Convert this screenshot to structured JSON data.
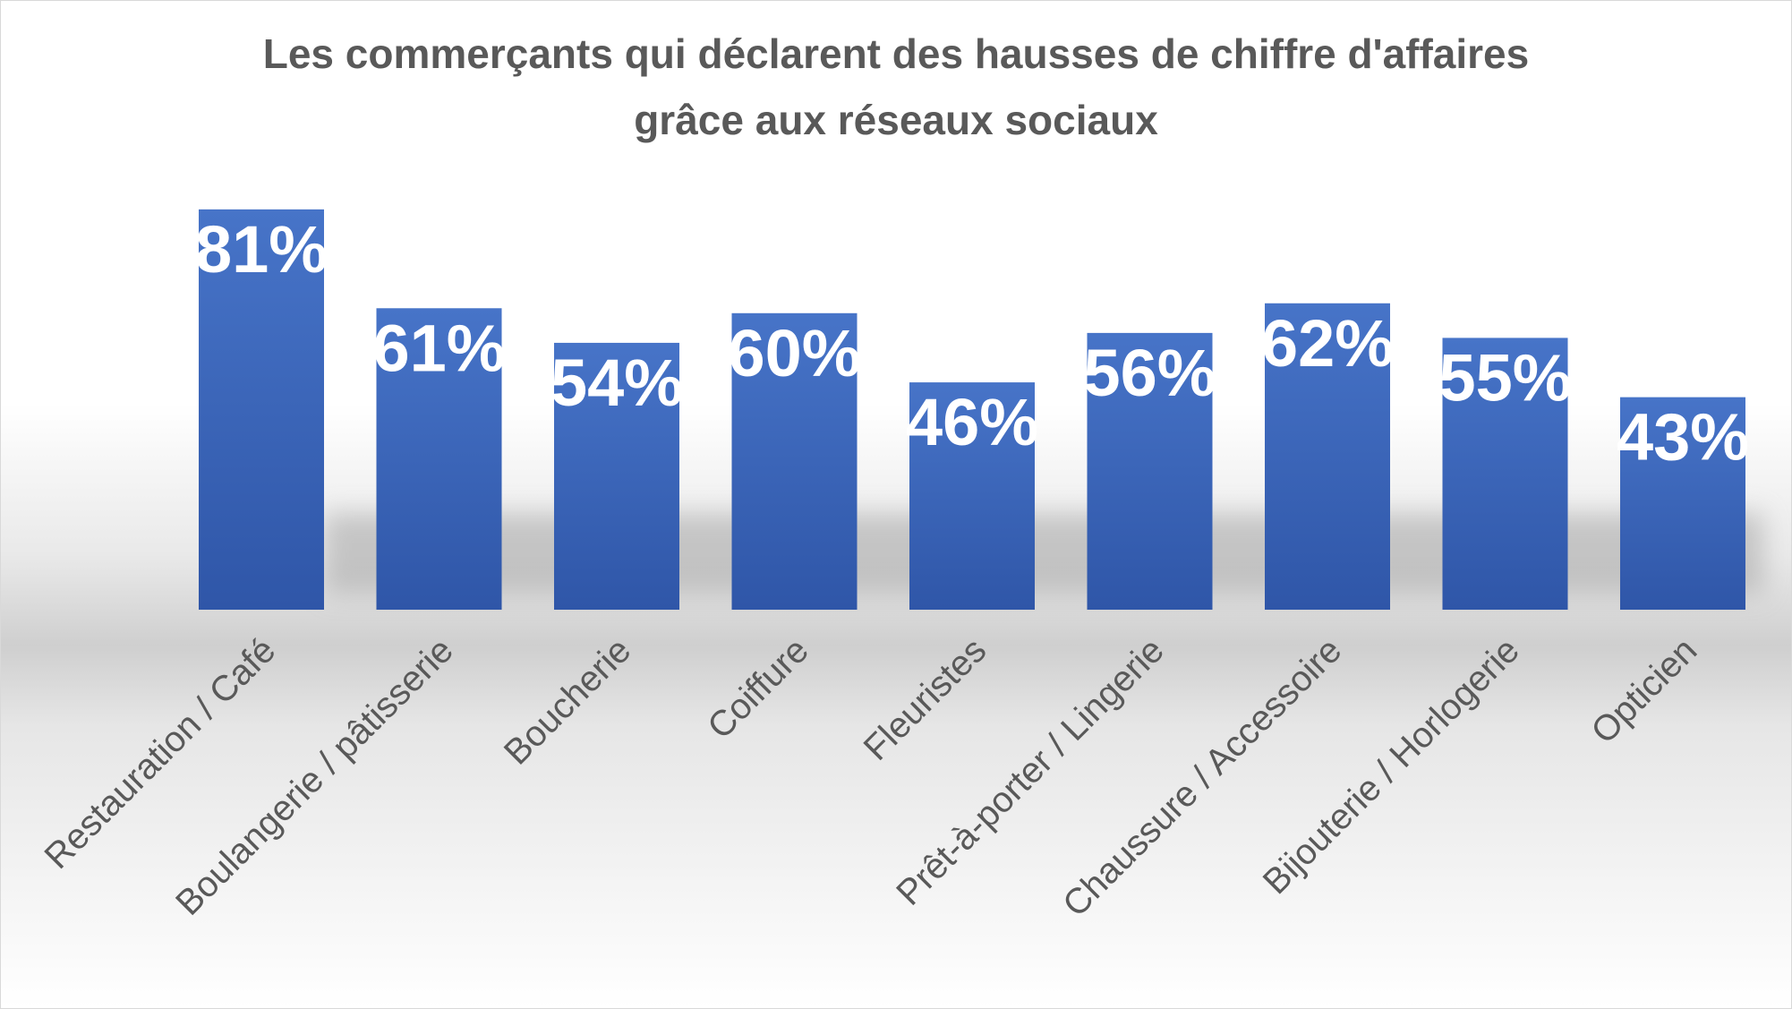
{
  "chart_data": {
    "type": "bar",
    "title": "Les commerçants qui déclarent des hausses de chiffre d'affaires",
    "subtitle": "grâce aux réseaux sociaux",
    "categories": [
      "Restauration / Café",
      "Boulangerie / pâtisserie",
      "Boucherie",
      "Coiffure",
      "Fleuristes",
      "Prêt-à-porter / Lingerie",
      "Chaussure / Accessoire",
      "Bijouterie / Horlogerie",
      "Opticien"
    ],
    "values": [
      81,
      61,
      54,
      60,
      46,
      56,
      62,
      55,
      43
    ],
    "data_labels": [
      "81%",
      "61%",
      "54%",
      "60%",
      "46%",
      "56%",
      "62%",
      "55%",
      "43%"
    ],
    "ylim": [
      0,
      100
    ],
    "grid": false,
    "legend": "none",
    "colors": {
      "bar_top": "#4774c8",
      "bar_bottom": "#2f56a8",
      "data_label": "#ffffff",
      "title": "#595959",
      "tick_label": "#595959"
    }
  }
}
